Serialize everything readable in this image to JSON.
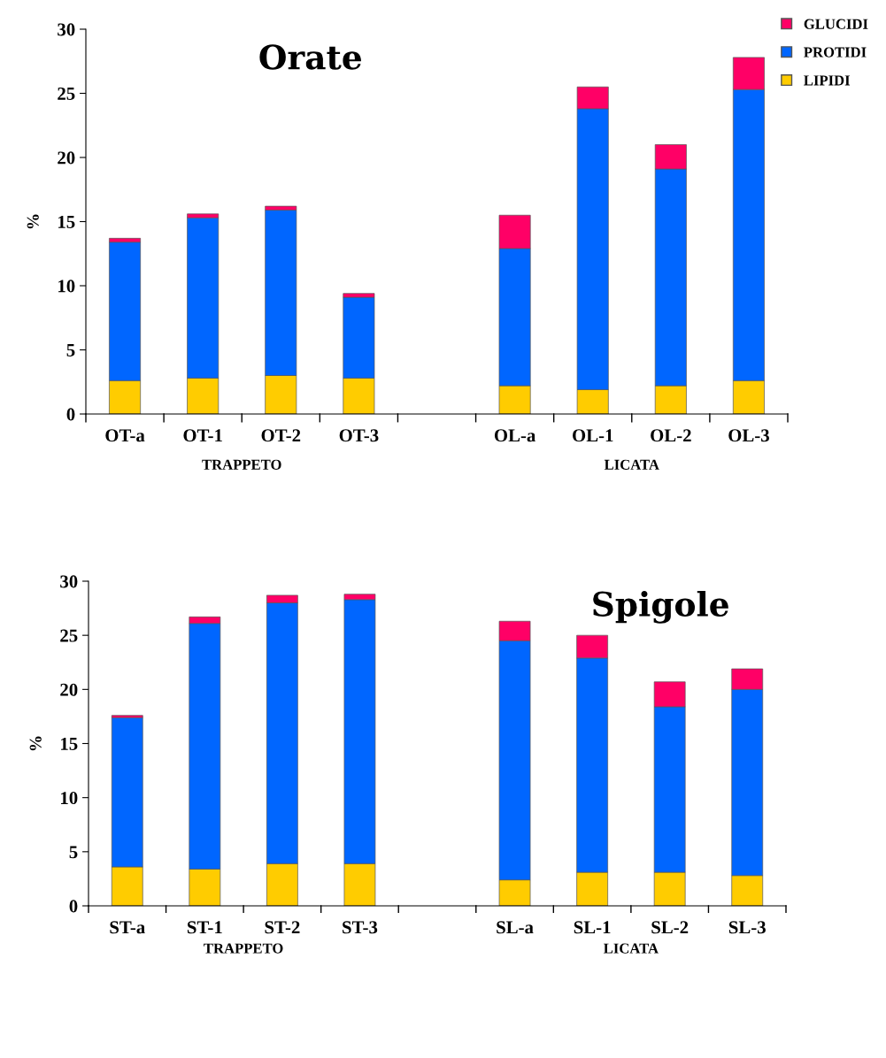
{
  "chart_data": [
    {
      "type": "bar",
      "title": "Orate",
      "ylabel": "%",
      "stacked": true,
      "legend": "top right",
      "grid": false,
      "categories": [
        "OT-a",
        "OT-1",
        "OT-2",
        "OT-3",
        null,
        "OL-a",
        "OL-1",
        "OL-2",
        "OL-3"
      ],
      "series": [
        {
          "name": "LIPIDI",
          "color": "#ffcc00",
          "values": [
            2.6,
            2.8,
            3.0,
            2.8,
            null,
            2.2,
            1.9,
            2.2,
            2.6
          ]
        },
        {
          "name": "PROTIDI",
          "color": "#0066ff",
          "values": [
            10.8,
            12.5,
            12.9,
            6.3,
            null,
            10.7,
            21.9,
            16.9,
            22.7
          ]
        },
        {
          "name": "GLUCIDI",
          "color": "#ff0066",
          "values": [
            0.3,
            0.3,
            0.3,
            0.3,
            null,
            2.6,
            1.7,
            1.9,
            2.5
          ]
        }
      ],
      "ylim": [
        0,
        30
      ],
      "yticks": [
        0,
        5,
        10,
        15,
        20,
        25,
        30
      ],
      "annotations": [
        "TRAPPETO",
        "LICATA"
      ]
    },
    {
      "type": "bar",
      "title": "Spigole",
      "ylabel": "%",
      "stacked": true,
      "legend": false,
      "grid": false,
      "categories": [
        "ST-a",
        "ST-1",
        "ST-2",
        "ST-3",
        null,
        "SL-a",
        "SL-1",
        "SL-2",
        "SL-3"
      ],
      "series": [
        {
          "color": "#ffcc00",
          "values": [
            3.6,
            3.4,
            3.9,
            3.9,
            null,
            2.4,
            3.1,
            3.1,
            2.8
          ]
        },
        {
          "color": "#0066ff",
          "values": [
            13.8,
            22.7,
            24.1,
            24.4,
            null,
            22.1,
            19.8,
            15.3,
            17.2
          ]
        },
        {
          "color": "#ff0066",
          "values": [
            0.2,
            0.6,
            0.7,
            0.5,
            null,
            1.8,
            2.1,
            2.3,
            1.9
          ]
        }
      ],
      "ylim": [
        0,
        30
      ],
      "yticks": [
        0,
        5,
        10,
        15,
        20,
        25,
        30
      ],
      "annotations": [
        "TRAPPETO",
        "LICATA"
      ]
    }
  ]
}
